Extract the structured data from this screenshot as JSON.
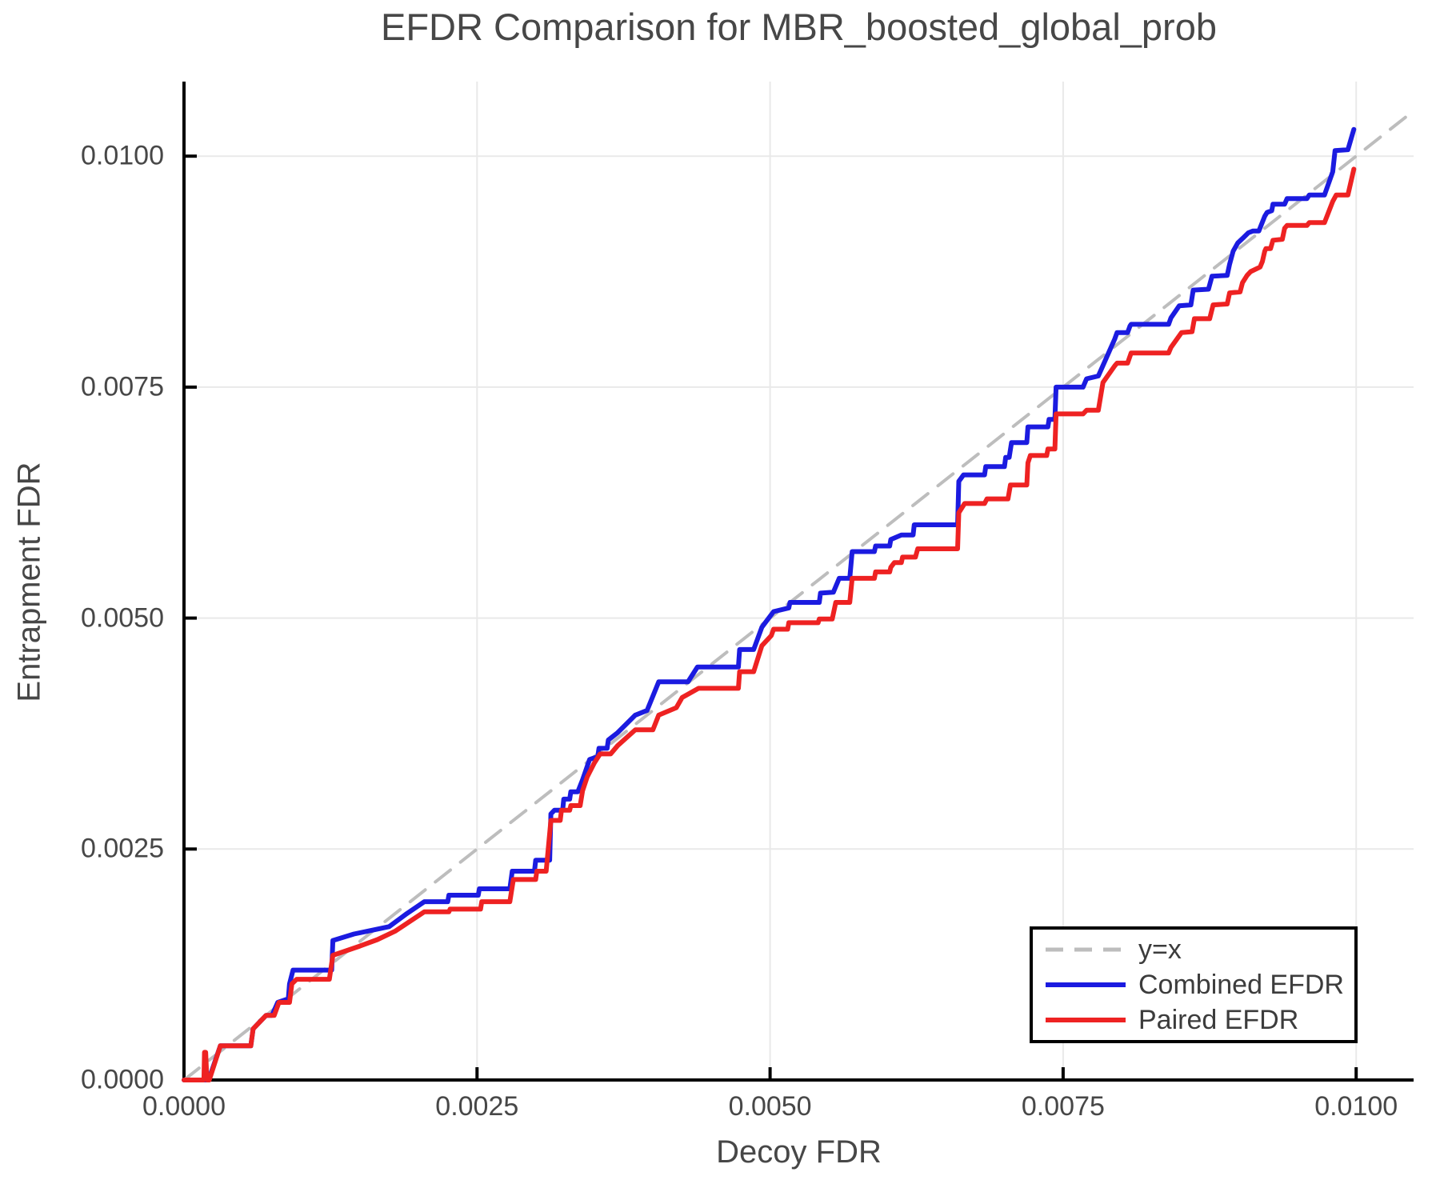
{
  "page": {
    "title": "EFDR Comparison for MBR_boosted_global_prob"
  },
  "chart_data": {
    "type": "line",
    "title": "EFDR Comparison for MBR_boosted_global_prob",
    "xlabel": "Decoy FDR",
    "ylabel": "Entrapment FDR",
    "xlim": [
      0,
      0.01049
    ],
    "ylim": [
      0,
      0.010807
    ],
    "grid": true,
    "legend_position": "lower right",
    "x_ticks": [
      0.0,
      0.0025,
      0.005,
      0.0075,
      0.01
    ],
    "x_tick_labels": [
      "0.0000",
      "0.0025",
      "0.0050",
      "0.0075",
      "0.0100"
    ],
    "y_ticks": [
      0.0,
      0.0025,
      0.005,
      0.0075,
      0.01
    ],
    "y_tick_labels": [
      "0.0000",
      "0.0025",
      "0.0050",
      "0.0075",
      "0.0100"
    ],
    "colors": {
      "reference": "#bdbdbd",
      "combined": "#1b1be0",
      "paired": "#ee2222",
      "grid": "#e9e9e9",
      "spine": "#000000",
      "text": "#474747"
    },
    "series": [
      {
        "name": "y=x",
        "kind": "reference",
        "style": "dashed",
        "color": "#bdbdbd",
        "points": [
          [
            0,
            0
          ],
          [
            0.01049,
            0.01049
          ]
        ]
      },
      {
        "name": "Combined EFDR",
        "kind": "step-line",
        "style": "solid",
        "color": "#1b1be0",
        "points": [
          [
            0,
            0
          ],
          [
            0.00021,
            0
          ],
          [
            0.00031,
            0.00037
          ],
          [
            0.00057,
            0.00037
          ],
          [
            0.00059,
            0.000553
          ],
          [
            0.0007,
            0.0007
          ],
          [
            0.000751,
            0.0007
          ],
          [
            0.0008,
            0.00084
          ],
          [
            0.00089,
            0.00088
          ],
          [
            0.0009,
            0.00104
          ],
          [
            0.00093,
            0.00119
          ],
          [
            0.00126,
            0.00119
          ],
          [
            0.00127,
            0.00151
          ],
          [
            0.00145,
            0.00158
          ],
          [
            0.0016,
            0.00162
          ],
          [
            0.00175,
            0.00166
          ],
          [
            0.0019,
            0.0018
          ],
          [
            0.00205,
            0.00193
          ],
          [
            0.00225,
            0.00193
          ],
          [
            0.00226,
            0.002
          ],
          [
            0.00251,
            0.002
          ],
          [
            0.00252,
            0.00207
          ],
          [
            0.00278,
            0.00207
          ],
          [
            0.0028,
            0.00226
          ],
          [
            0.00299,
            0.00226
          ],
          [
            0.003,
            0.00238
          ],
          [
            0.00312,
            0.00238
          ],
          [
            0.00313,
            0.00288
          ],
          [
            0.00316,
            0.00292
          ],
          [
            0.00323,
            0.00292
          ],
          [
            0.00324,
            0.00304
          ],
          [
            0.00329,
            0.00304
          ],
          [
            0.0033,
            0.00312
          ],
          [
            0.00336,
            0.00312
          ],
          [
            0.0034,
            0.00325
          ],
          [
            0.00346,
            0.00347
          ],
          [
            0.00353,
            0.0035
          ],
          [
            0.00354,
            0.00359
          ],
          [
            0.00361,
            0.00359
          ],
          [
            0.00362,
            0.00368
          ],
          [
            0.0037,
            0.00376
          ],
          [
            0.00385,
            0.00395
          ],
          [
            0.00395,
            0.004
          ],
          [
            0.00405,
            0.00431
          ],
          [
            0.0043,
            0.00431
          ],
          [
            0.00438,
            0.00447
          ],
          [
            0.00473,
            0.00447
          ],
          [
            0.00474,
            0.00466
          ],
          [
            0.00486,
            0.00466
          ],
          [
            0.00493,
            0.0049
          ],
          [
            0.00503,
            0.00507
          ],
          [
            0.00516,
            0.00511
          ],
          [
            0.00517,
            0.00517
          ],
          [
            0.00542,
            0.00517
          ],
          [
            0.00543,
            0.00527
          ],
          [
            0.00554,
            0.00528
          ],
          [
            0.00559,
            0.00543
          ],
          [
            0.00568,
            0.00543
          ],
          [
            0.0057,
            0.00572
          ],
          [
            0.00589,
            0.00572
          ],
          [
            0.0059,
            0.00578
          ],
          [
            0.00602,
            0.00578
          ],
          [
            0.00603,
            0.00585
          ],
          [
            0.00612,
            0.0059
          ],
          [
            0.00622,
            0.0059
          ],
          [
            0.00623,
            0.00601
          ],
          [
            0.0066,
            0.00601
          ],
          [
            0.00661,
            0.00648
          ],
          [
            0.00665,
            0.00655
          ],
          [
            0.00683,
            0.00655
          ],
          [
            0.00684,
            0.00664
          ],
          [
            0.007,
            0.00664
          ],
          [
            0.00701,
            0.00674
          ],
          [
            0.00704,
            0.00674
          ],
          [
            0.00706,
            0.0069
          ],
          [
            0.00719,
            0.0069
          ],
          [
            0.0072,
            0.00707
          ],
          [
            0.00737,
            0.00707
          ],
          [
            0.00738,
            0.00715
          ],
          [
            0.00743,
            0.00715
          ],
          [
            0.00744,
            0.0075
          ],
          [
            0.00767,
            0.0075
          ],
          [
            0.0077,
            0.00759
          ],
          [
            0.0078,
            0.00762
          ],
          [
            0.00794,
            0.00802
          ],
          [
            0.00796,
            0.00809
          ],
          [
            0.00805,
            0.00809
          ],
          [
            0.00807,
            0.00816
          ],
          [
            0.00808,
            0.00818
          ],
          [
            0.0084,
            0.00818
          ],
          [
            0.00842,
            0.00825
          ],
          [
            0.00849,
            0.00838
          ],
          [
            0.00859,
            0.00839
          ],
          [
            0.00861,
            0.00855
          ],
          [
            0.00874,
            0.00856
          ],
          [
            0.00877,
            0.0087
          ],
          [
            0.0089,
            0.00871
          ],
          [
            0.00892,
            0.00883
          ],
          [
            0.00895,
            0.00897
          ],
          [
            0.00899,
            0.00906
          ],
          [
            0.00904,
            0.00912
          ],
          [
            0.00908,
            0.00917
          ],
          [
            0.00912,
            0.00919
          ],
          [
            0.00917,
            0.00919
          ],
          [
            0.00922,
            0.00935
          ],
          [
            0.00924,
            0.00939
          ],
          [
            0.00928,
            0.00941
          ],
          [
            0.00929,
            0.00948
          ],
          [
            0.00939,
            0.00948
          ],
          [
            0.00941,
            0.00954
          ],
          [
            0.00958,
            0.00954
          ],
          [
            0.0096,
            0.00958
          ],
          [
            0.00973,
            0.00958
          ],
          [
            0.0098,
            0.00983
          ],
          [
            0.00982,
            0.01006
          ],
          [
            0.00993,
            0.01007
          ],
          [
            0.00998,
            0.01029
          ]
        ]
      },
      {
        "name": "Paired EFDR",
        "kind": "step-line",
        "style": "solid",
        "color": "#ee2222",
        "points": [
          [
            0,
            0
          ],
          [
            0.00017,
            0
          ],
          [
            0.000175,
            0.0003
          ],
          [
            0.000185,
            0.0003
          ],
          [
            0.000195,
            0
          ],
          [
            0.000216,
            0
          ],
          [
            0.00031,
            0.00037
          ],
          [
            0.00057,
            0.00037
          ],
          [
            0.00059,
            0.000553
          ],
          [
            0.0007,
            0.0007
          ],
          [
            0.00077,
            0.0007
          ],
          [
            0.00081,
            0.00084
          ],
          [
            0.0009,
            0.00084
          ],
          [
            0.00092,
            0.00104
          ],
          [
            0.00096,
            0.00109
          ],
          [
            0.00124,
            0.00109
          ],
          [
            0.00127,
            0.00135
          ],
          [
            0.0015,
            0.00145
          ],
          [
            0.00165,
            0.00152
          ],
          [
            0.0018,
            0.00161
          ],
          [
            0.00205,
            0.00182
          ],
          [
            0.00226,
            0.00182
          ],
          [
            0.00227,
            0.00185
          ],
          [
            0.00253,
            0.00185
          ],
          [
            0.00254,
            0.00193
          ],
          [
            0.00278,
            0.00193
          ],
          [
            0.00281,
            0.00217
          ],
          [
            0.003,
            0.00217
          ],
          [
            0.00301,
            0.00226
          ],
          [
            0.00309,
            0.00226
          ],
          [
            0.00313,
            0.00281
          ],
          [
            0.00321,
            0.00281
          ],
          [
            0.00322,
            0.00292
          ],
          [
            0.00329,
            0.00292
          ],
          [
            0.0033,
            0.00297
          ],
          [
            0.00338,
            0.00297
          ],
          [
            0.0034,
            0.00313
          ],
          [
            0.00344,
            0.00328
          ],
          [
            0.0035,
            0.00343
          ],
          [
            0.00355,
            0.00353
          ],
          [
            0.00364,
            0.00353
          ],
          [
            0.0037,
            0.00362
          ],
          [
            0.00385,
            0.00379
          ],
          [
            0.004,
            0.00379
          ],
          [
            0.00405,
            0.00395
          ],
          [
            0.0042,
            0.00403
          ],
          [
            0.00425,
            0.00414
          ],
          [
            0.00439,
            0.00424
          ],
          [
            0.00473,
            0.00424
          ],
          [
            0.00474,
            0.00442
          ],
          [
            0.00486,
            0.00442
          ],
          [
            0.00493,
            0.0047
          ],
          [
            0.00501,
            0.00481
          ],
          [
            0.00503,
            0.00488
          ],
          [
            0.00515,
            0.00488
          ],
          [
            0.00516,
            0.00495
          ],
          [
            0.00541,
            0.00495
          ],
          [
            0.00542,
            0.00499
          ],
          [
            0.00553,
            0.00499
          ],
          [
            0.00556,
            0.00517
          ],
          [
            0.00568,
            0.00517
          ],
          [
            0.0057,
            0.00543
          ],
          [
            0.00589,
            0.00543
          ],
          [
            0.0059,
            0.0055
          ],
          [
            0.00602,
            0.0055
          ],
          [
            0.00603,
            0.00555
          ],
          [
            0.00606,
            0.0056
          ],
          [
            0.00612,
            0.0056
          ],
          [
            0.00613,
            0.00566
          ],
          [
            0.00624,
            0.00566
          ],
          [
            0.00626,
            0.00575
          ],
          [
            0.0066,
            0.00575
          ],
          [
            0.00661,
            0.00614
          ],
          [
            0.00666,
            0.00624
          ],
          [
            0.00683,
            0.00624
          ],
          [
            0.00685,
            0.00629
          ],
          [
            0.00703,
            0.00629
          ],
          [
            0.00705,
            0.00644
          ],
          [
            0.00719,
            0.00644
          ],
          [
            0.0072,
            0.00668
          ],
          [
            0.00722,
            0.00676
          ],
          [
            0.00736,
            0.00676
          ],
          [
            0.00737,
            0.00683
          ],
          [
            0.00743,
            0.00683
          ],
          [
            0.00744,
            0.00721
          ],
          [
            0.00767,
            0.00721
          ],
          [
            0.0077,
            0.00725
          ],
          [
            0.0078,
            0.00725
          ],
          [
            0.00784,
            0.00755
          ],
          [
            0.00794,
            0.00773
          ],
          [
            0.00796,
            0.00776
          ],
          [
            0.00805,
            0.00776
          ],
          [
            0.00808,
            0.00787
          ],
          [
            0.0084,
            0.00787
          ],
          [
            0.00842,
            0.00793
          ],
          [
            0.00851,
            0.00809
          ],
          [
            0.0086,
            0.0081
          ],
          [
            0.00862,
            0.00824
          ],
          [
            0.00875,
            0.00824
          ],
          [
            0.00878,
            0.00839
          ],
          [
            0.0089,
            0.0084
          ],
          [
            0.00892,
            0.00852
          ],
          [
            0.00901,
            0.00853
          ],
          [
            0.00903,
            0.00863
          ],
          [
            0.00907,
            0.00871
          ],
          [
            0.0091,
            0.00875
          ],
          [
            0.00918,
            0.0088
          ],
          [
            0.0092,
            0.00886
          ],
          [
            0.00922,
            0.00897
          ],
          [
            0.00923,
            0.009
          ],
          [
            0.00927,
            0.009
          ],
          [
            0.00929,
            0.00909
          ],
          [
            0.00937,
            0.0091
          ],
          [
            0.00939,
            0.00922
          ],
          [
            0.00941,
            0.00925
          ],
          [
            0.00958,
            0.00925
          ],
          [
            0.0096,
            0.00928
          ],
          [
            0.00973,
            0.00928
          ],
          [
            0.0098,
            0.00951
          ],
          [
            0.00983,
            0.00958
          ],
          [
            0.00993,
            0.00958
          ],
          [
            0.00998,
            0.00986
          ]
        ]
      }
    ]
  }
}
